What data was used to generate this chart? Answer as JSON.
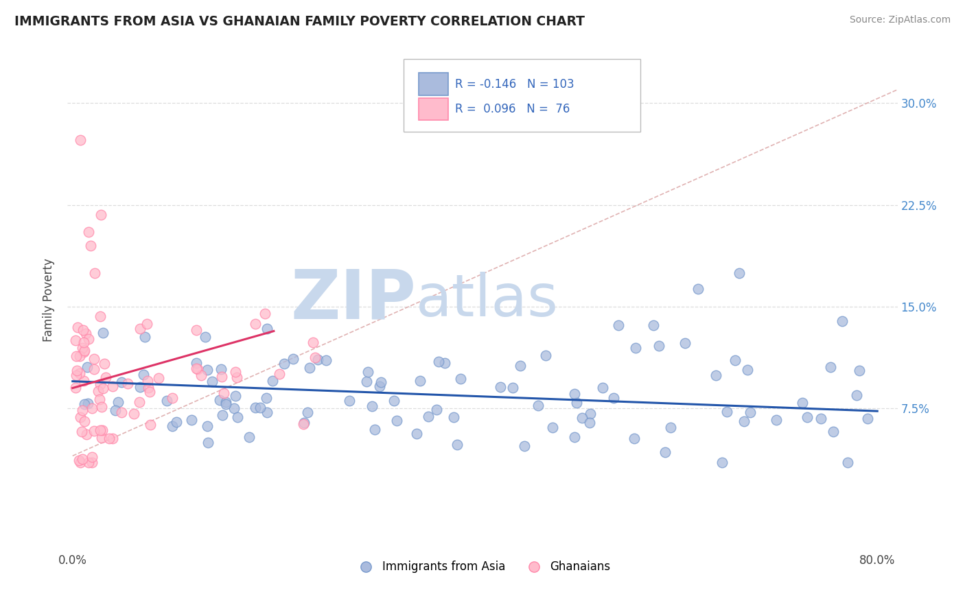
{
  "title": "IMMIGRANTS FROM ASIA VS GHANAIAN FAMILY POVERTY CORRELATION CHART",
  "source": "Source: ZipAtlas.com",
  "ylabel": "Family Poverty",
  "ytick_values": [
    0.075,
    0.15,
    0.225,
    0.3
  ],
  "ytick_labels": [
    "7.5%",
    "15.0%",
    "22.5%",
    "30.0%"
  ],
  "xlim": [
    -0.005,
    0.82
  ],
  "ylim": [
    -0.03,
    0.34
  ],
  "blue_face": "#AABBDD",
  "blue_edge": "#7799CC",
  "pink_face": "#FFBBCC",
  "pink_edge": "#FF88AA",
  "trend_blue": "#2255AA",
  "trend_pink": "#DD3366",
  "dashed_pink": "#EE9999",
  "grid_color": "#DDDDDD",
  "watermark_zip": "#C8D8EC",
  "watermark_atlas": "#C8D8EC",
  "background": "#FFFFFF",
  "title_color": "#222222",
  "source_color": "#888888",
  "right_axis_color": "#4488CC",
  "legend_text_color": "#3366BB"
}
